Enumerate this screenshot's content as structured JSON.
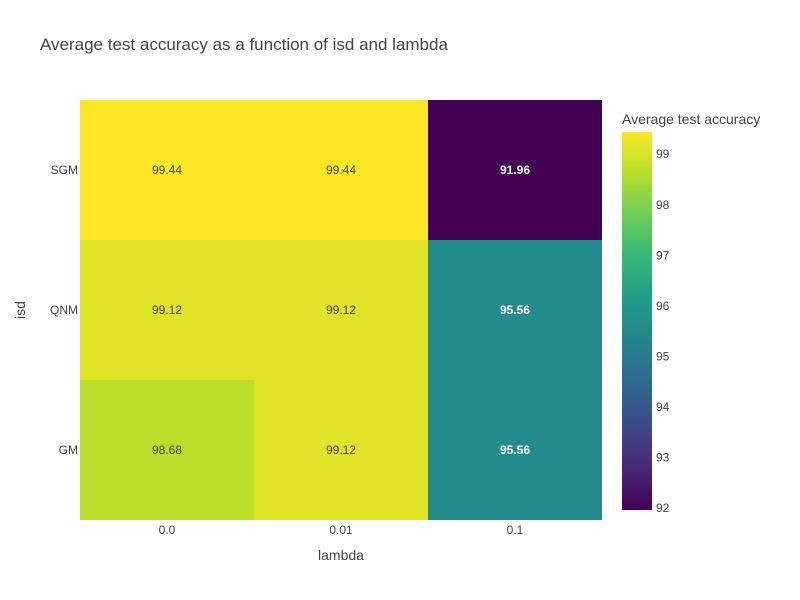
{
  "chart_data": {
    "type": "heatmap",
    "title": "Average test accuracy as a function of isd and lambda",
    "xlabel": "lambda",
    "ylabel": "isd",
    "x": [
      "0.0",
      "0.01",
      "0.1"
    ],
    "y": [
      "GM",
      "QNM",
      "SGM"
    ],
    "z": [
      [
        98.68,
        99.12,
        95.56
      ],
      [
        99.12,
        99.12,
        95.56
      ],
      [
        99.44,
        99.44,
        91.96
      ]
    ],
    "cell_labels": [
      [
        "98.68",
        "99.12",
        "95.56"
      ],
      [
        "99.12",
        "99.12",
        "95.56"
      ],
      [
        "99.44",
        "99.44",
        "91.96"
      ]
    ],
    "colorscale": "Viridis",
    "colorbar": {
      "title": "Average test accuracy",
      "range": [
        91.96,
        99.44
      ],
      "ticks": [
        92,
        93,
        94,
        95,
        96,
        97,
        98,
        99
      ]
    }
  }
}
